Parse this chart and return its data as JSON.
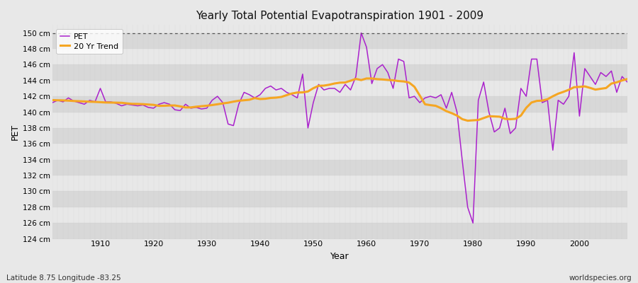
{
  "title": "Yearly Total Potential Evapotranspiration 1901 - 2009",
  "ylabel": "PET",
  "xlabel": "Year",
  "footnote_left": "Latitude 8.75 Longitude -83.25",
  "footnote_right": "worldspecies.org",
  "pet_color": "#aa22cc",
  "trend_color": "#f5a623",
  "fig_bg_color": "#e8e8e8",
  "band_light": "#e8e8e8",
  "band_dark": "#d8d8d8",
  "grid_color": "#c8c8c8",
  "ylim_min": 124,
  "ylim_max": 151,
  "xlim_min": 1901,
  "xlim_max": 2009,
  "trend_window": 20,
  "years": [
    1901,
    1902,
    1903,
    1904,
    1905,
    1906,
    1907,
    1908,
    1909,
    1910,
    1911,
    1912,
    1913,
    1914,
    1915,
    1916,
    1917,
    1918,
    1919,
    1920,
    1921,
    1922,
    1923,
    1924,
    1925,
    1926,
    1927,
    1928,
    1929,
    1930,
    1931,
    1932,
    1933,
    1934,
    1935,
    1936,
    1937,
    1938,
    1939,
    1940,
    1941,
    1942,
    1943,
    1944,
    1945,
    1946,
    1947,
    1948,
    1949,
    1950,
    1951,
    1952,
    1953,
    1954,
    1955,
    1956,
    1957,
    1958,
    1959,
    1960,
    1961,
    1962,
    1963,
    1964,
    1965,
    1966,
    1967,
    1968,
    1969,
    1970,
    1971,
    1972,
    1973,
    1974,
    1975,
    1976,
    1977,
    1978,
    1979,
    1980,
    1981,
    1982,
    1983,
    1984,
    1985,
    1986,
    1987,
    1988,
    1989,
    1990,
    1991,
    1992,
    1993,
    1994,
    1995,
    1996,
    1997,
    1998,
    1999,
    2000,
    2001,
    2002,
    2003,
    2004,
    2005,
    2006,
    2007,
    2008,
    2009
  ],
  "pet_values": [
    141.2,
    141.5,
    141.3,
    141.8,
    141.4,
    141.2,
    141.0,
    141.5,
    141.3,
    143.0,
    141.3,
    141.3,
    141.1,
    140.8,
    141.0,
    140.9,
    140.8,
    140.9,
    140.6,
    140.5,
    141.0,
    141.2,
    141.0,
    140.3,
    140.2,
    141.0,
    140.5,
    140.6,
    140.4,
    140.5,
    141.5,
    142.0,
    141.2,
    138.5,
    138.3,
    141.0,
    142.5,
    142.2,
    141.8,
    142.2,
    143.0,
    143.3,
    142.8,
    143.0,
    142.5,
    142.2,
    141.8,
    144.8,
    138.0,
    141.2,
    143.5,
    142.8,
    143.0,
    143.0,
    142.5,
    143.5,
    142.8,
    144.5,
    150.0,
    148.2,
    143.6,
    145.5,
    146.0,
    145.0,
    143.0,
    146.7,
    146.4,
    141.8,
    142.0,
    141.2,
    141.8,
    142.0,
    141.8,
    142.2,
    140.5,
    142.5,
    140.0,
    133.8,
    128.0,
    126.0,
    141.5,
    143.8,
    140.0,
    137.5,
    138.0,
    140.5,
    137.3,
    138.0,
    143.0,
    142.0,
    146.7,
    146.7,
    141.2,
    141.5,
    135.2,
    141.5,
    141.0,
    142.0,
    147.5,
    139.5,
    145.5,
    144.5,
    143.5,
    145.0,
    144.5,
    145.2,
    142.5,
    144.5,
    143.8
  ]
}
